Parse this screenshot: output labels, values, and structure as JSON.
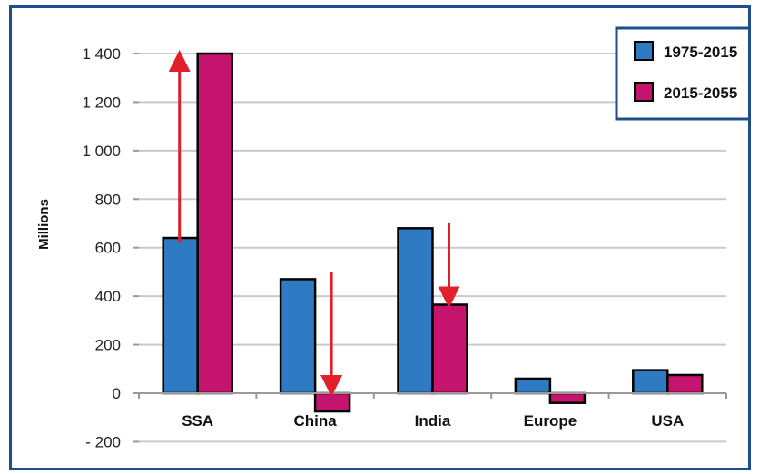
{
  "chart_data": {
    "type": "bar",
    "categories": [
      "SSA",
      "China",
      "India",
      "Europe",
      "USA"
    ],
    "series": [
      {
        "name": "1975-2015",
        "values": [
          640,
          470,
          680,
          60,
          95
        ],
        "color": "#2e7bc4"
      },
      {
        "name": "2015-2055",
        "values": [
          1400,
          -75,
          365,
          -40,
          75
        ],
        "color": "#c4146e"
      }
    ],
    "ylabel": "Millions",
    "ylim": [
      -200,
      1400
    ],
    "yticks": [
      -200,
      0,
      200,
      400,
      600,
      800,
      1000,
      1200,
      1400
    ],
    "ytick_labels": [
      "- 200",
      "0",
      "200",
      "400",
      "600",
      "800",
      "1 000",
      "1 200",
      "1 400"
    ],
    "grid": true,
    "legend_position": "top-right",
    "annotations": [
      {
        "type": "arrow",
        "category": "SSA",
        "from": 620,
        "to": 1400,
        "color": "#e0202a"
      },
      {
        "type": "arrow",
        "category": "China",
        "from": 500,
        "to": 0,
        "color": "#e0202a"
      },
      {
        "type": "arrow",
        "category": "India",
        "from": 700,
        "to": 365,
        "color": "#e0202a"
      }
    ]
  }
}
